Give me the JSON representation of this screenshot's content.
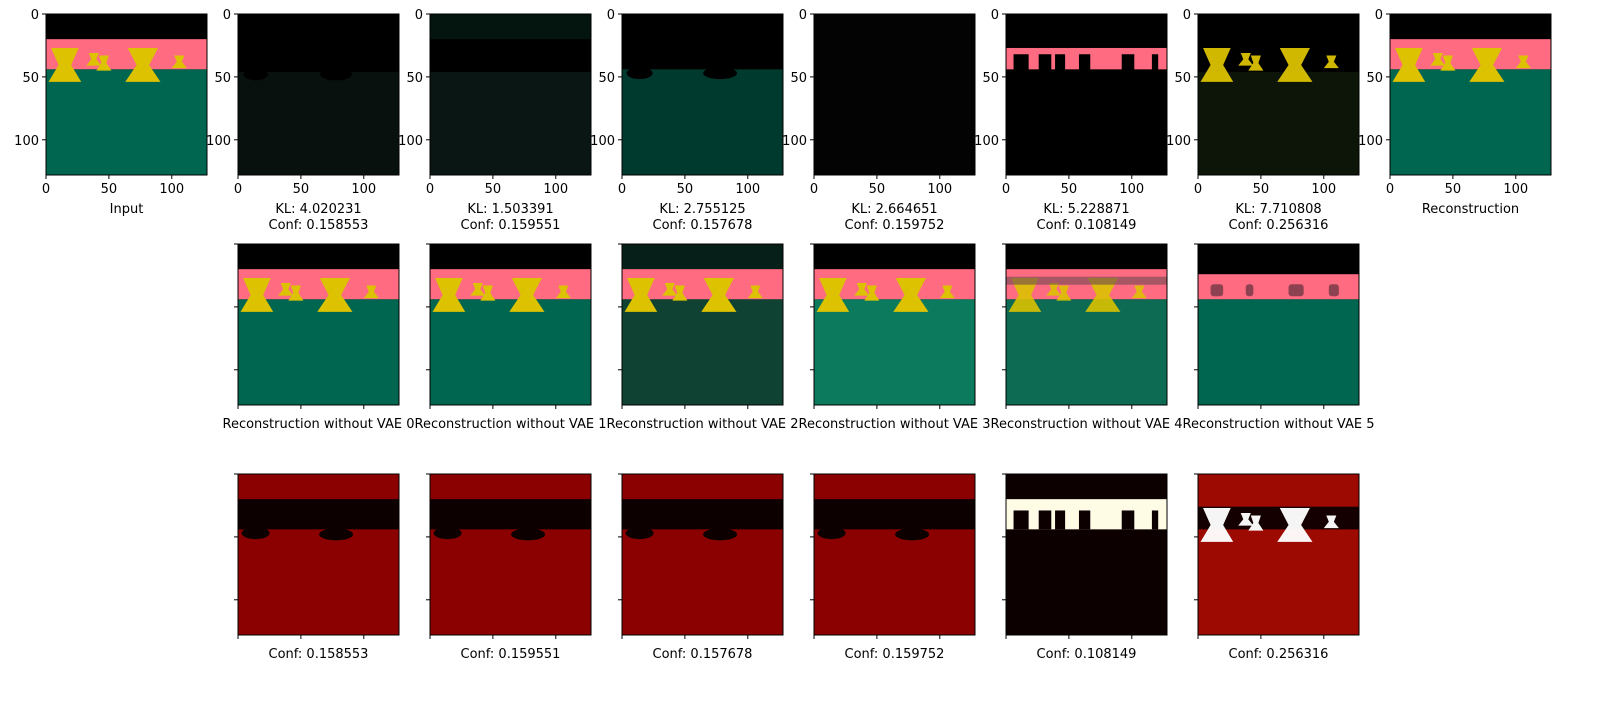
{
  "figure": {
    "input_caption": "Input",
    "reconstruction_caption": "Reconstruction",
    "axis_ticks": [
      "0",
      "50",
      "100"
    ],
    "colors": {
      "black": "#000000",
      "pink": "#ff6b81",
      "teal": "#00664f",
      "yellow": "#dcc200",
      "dark_red": "#8b0000",
      "hot_white": "#ffffff"
    }
  },
  "chart_data": {
    "type": "image-grid",
    "image_extent": [
      0,
      128
    ],
    "components": [
      {
        "kl": "KL: 4.020231",
        "conf": "Conf: 0.158553",
        "recon_label": "Reconstruction without VAE 0",
        "conf_value": 0.158553
      },
      {
        "kl": "KL: 1.503391",
        "conf": "Conf: 0.159551",
        "recon_label": "Reconstruction without VAE 1",
        "conf_value": 0.159551
      },
      {
        "kl": "KL: 2.755125",
        "conf": "Conf: 0.157678",
        "recon_label": "Reconstruction without VAE 2",
        "conf_value": 0.157678
      },
      {
        "kl": "KL: 2.664651",
        "conf": "Conf: 0.159752",
        "recon_label": "Reconstruction without VAE 3",
        "conf_value": 0.159752
      },
      {
        "kl": "KL: 5.228871",
        "conf": "Conf: 0.108149",
        "recon_label": "Reconstruction without VAE 4",
        "conf_value": 0.108149
      },
      {
        "kl": "KL: 7.710808",
        "conf": "Conf: 0.256316",
        "recon_label": "Reconstruction without VAE 5",
        "conf_value": 0.256316
      }
    ]
  }
}
